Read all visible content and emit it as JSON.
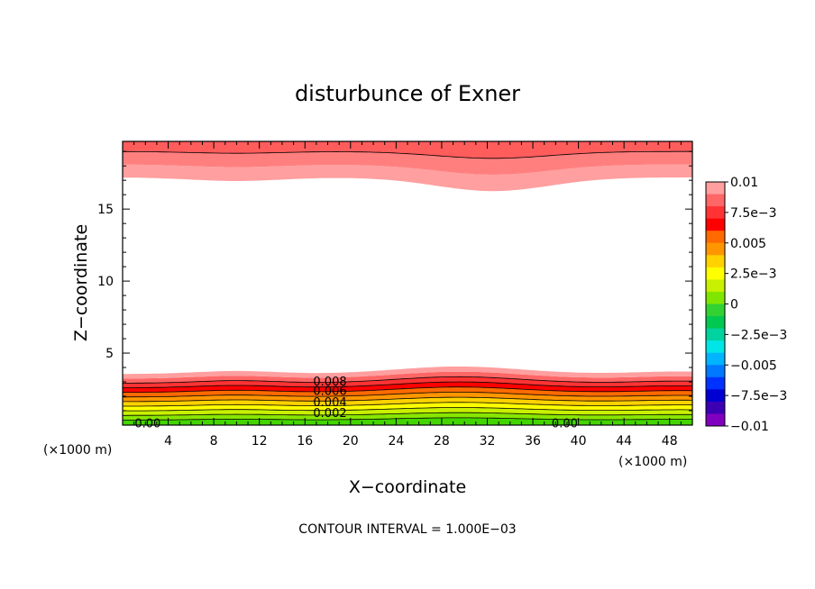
{
  "chart_data": {
    "type": "contour",
    "title": "disturbunce of Exner",
    "xlabel": "X−coordinate",
    "ylabel": "Z−coordinate",
    "x_unit_label": "(×1000 m)",
    "y_unit_label": "(×1000 m)",
    "footnote": "CONTOUR INTERVAL = 1.000E−03",
    "xlim": [
      0,
      50
    ],
    "ylim": [
      0,
      19.7
    ],
    "xticks": [
      4,
      8,
      12,
      16,
      20,
      24,
      28,
      32,
      36,
      40,
      44,
      48
    ],
    "yticks": [
      5,
      10,
      15
    ],
    "colorbar": {
      "range": [
        -0.01,
        0.01
      ],
      "labels": [
        "0.01",
        "7.5e−3",
        "0.005",
        "2.5e−3",
        "0",
        "−2.5e−3",
        "−0.005",
        "−7.5e−3",
        "−0.01"
      ],
      "colors": [
        "#ff9f9f",
        "#ff6666",
        "#ff3333",
        "#ff0000",
        "#ff6a00",
        "#ff9600",
        "#ffd200",
        "#ffff00",
        "#c8f000",
        "#80e600",
        "#32d232",
        "#00c850",
        "#00d2a0",
        "#00e6e6",
        "#00b4ff",
        "#0078ff",
        "#0032ff",
        "#0000d2",
        "#3c00b4",
        "#8000c0"
      ]
    },
    "contour_labels": [
      {
        "text": "0.008",
        "x": 18.2,
        "y": 3.0
      },
      {
        "text": "0.006",
        "x": 18.2,
        "y": 2.35
      },
      {
        "text": "0.004",
        "x": 18.2,
        "y": 1.55
      },
      {
        "text": "0.002",
        "x": 18.2,
        "y": 0.8
      },
      {
        "text": "0.00",
        "x": 2.2,
        "y": 0.1
      },
      {
        "text": "0.00",
        "x": 38.8,
        "y": 0.1
      }
    ]
  }
}
